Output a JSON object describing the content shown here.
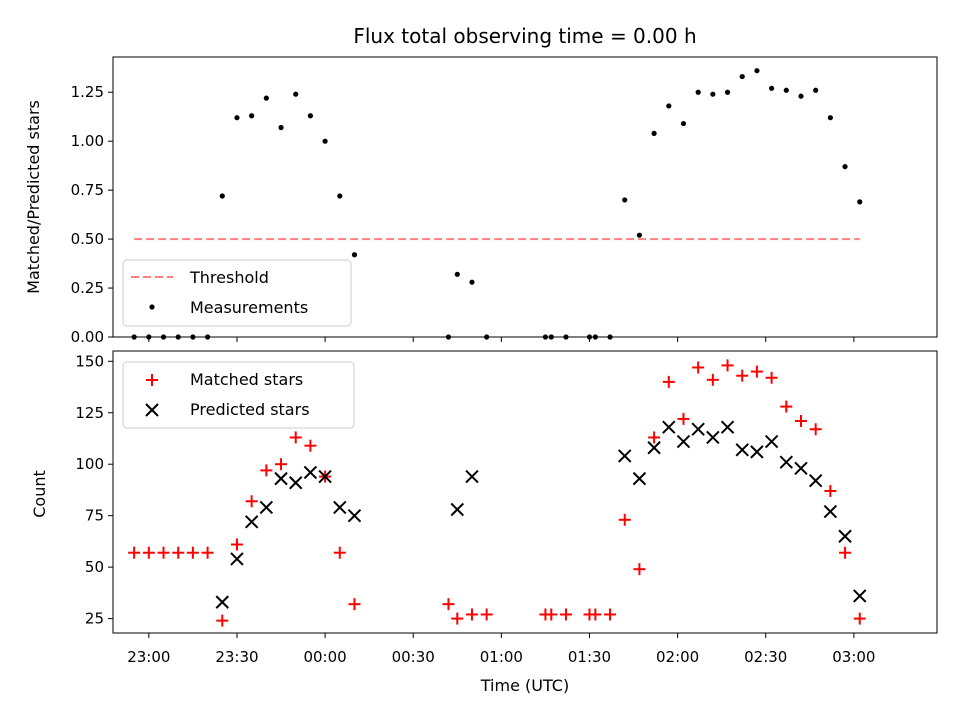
{
  "chart_data": [
    {
      "type": "scatter",
      "title": "Flux total observing time = 0.00 h",
      "ylabel": "Matched/Predicted stars",
      "xlabel": "",
      "ylim": [
        0,
        1.43
      ],
      "yticks": [
        "0.00",
        "0.25",
        "0.50",
        "0.75",
        "1.00",
        "1.25"
      ],
      "legend_placement": "lower-left",
      "threshold": {
        "name": "Threshold",
        "value": 0.5,
        "x_start": "22:55",
        "x_end": "03:02",
        "color": "#ff7f7f"
      },
      "series": [
        {
          "name": "Measurements",
          "color": "#000000",
          "points": [
            [
              "22:55",
              0.0
            ],
            [
              "23:00",
              0.0
            ],
            [
              "23:05",
              0.0
            ],
            [
              "23:10",
              0.0
            ],
            [
              "23:15",
              0.0
            ],
            [
              "23:20",
              0.0
            ],
            [
              "23:25",
              0.72
            ],
            [
              "23:30",
              1.12
            ],
            [
              "23:35",
              1.13
            ],
            [
              "23:40",
              1.22
            ],
            [
              "23:45",
              1.07
            ],
            [
              "23:50",
              1.24
            ],
            [
              "23:55",
              1.13
            ],
            [
              "00:00",
              1.0
            ],
            [
              "00:05",
              0.72
            ],
            [
              "00:10",
              0.42
            ],
            [
              "00:42",
              0.0
            ],
            [
              "00:45",
              0.32
            ],
            [
              "00:50",
              0.28
            ],
            [
              "00:55",
              0.0
            ],
            [
              "01:15",
              0.0
            ],
            [
              "01:17",
              0.0
            ],
            [
              "01:22",
              0.0
            ],
            [
              "01:30",
              0.0
            ],
            [
              "01:32",
              0.0
            ],
            [
              "01:37",
              0.0
            ],
            [
              "01:42",
              0.7
            ],
            [
              "01:47",
              0.52
            ],
            [
              "01:52",
              1.04
            ],
            [
              "01:57",
              1.18
            ],
            [
              "02:02",
              1.09
            ],
            [
              "02:07",
              1.25
            ],
            [
              "02:12",
              1.24
            ],
            [
              "02:17",
              1.25
            ],
            [
              "02:22",
              1.33
            ],
            [
              "02:27",
              1.36
            ],
            [
              "02:32",
              1.27
            ],
            [
              "02:37",
              1.26
            ],
            [
              "02:42",
              1.23
            ],
            [
              "02:47",
              1.26
            ],
            [
              "02:52",
              1.12
            ],
            [
              "02:57",
              0.87
            ],
            [
              "03:02",
              0.69
            ]
          ]
        }
      ]
    },
    {
      "type": "scatter",
      "title": "",
      "xlabel": "Time (UTC)",
      "ylabel": "Count",
      "ylim": [
        18,
        155
      ],
      "yticks": [
        "25",
        "50",
        "75",
        "100",
        "125",
        "150"
      ],
      "xticks": [
        "23:00",
        "23:30",
        "00:00",
        "00:30",
        "01:00",
        "01:30",
        "02:00",
        "02:30",
        "03:00"
      ],
      "legend_placement": "upper-left",
      "series": [
        {
          "name": "Matched stars",
          "marker": "+",
          "color": "#ff0000",
          "points": [
            [
              "22:55",
              57
            ],
            [
              "23:00",
              57
            ],
            [
              "23:05",
              57
            ],
            [
              "23:10",
              57
            ],
            [
              "23:15",
              57
            ],
            [
              "23:20",
              57
            ],
            [
              "23:25",
              24
            ],
            [
              "23:30",
              61
            ],
            [
              "23:35",
              82
            ],
            [
              "23:40",
              97
            ],
            [
              "23:45",
              100
            ],
            [
              "23:50",
              113
            ],
            [
              "23:55",
              109
            ],
            [
              "00:00",
              94
            ],
            [
              "00:05",
              57
            ],
            [
              "00:10",
              32
            ],
            [
              "00:42",
              32
            ],
            [
              "00:45",
              25
            ],
            [
              "00:50",
              27
            ],
            [
              "00:55",
              27
            ],
            [
              "01:15",
              27
            ],
            [
              "01:17",
              27
            ],
            [
              "01:22",
              27
            ],
            [
              "01:30",
              27
            ],
            [
              "01:32",
              27
            ],
            [
              "01:37",
              27
            ],
            [
              "01:42",
              73
            ],
            [
              "01:47",
              49
            ],
            [
              "01:52",
              113
            ],
            [
              "01:57",
              140
            ],
            [
              "02:02",
              122
            ],
            [
              "02:07",
              147
            ],
            [
              "02:12",
              141
            ],
            [
              "02:17",
              148
            ],
            [
              "02:22",
              143
            ],
            [
              "02:27",
              145
            ],
            [
              "02:32",
              142
            ],
            [
              "02:37",
              128
            ],
            [
              "02:42",
              121
            ],
            [
              "02:47",
              117
            ],
            [
              "02:52",
              87
            ],
            [
              "02:57",
              57
            ],
            [
              "03:02",
              25
            ]
          ]
        },
        {
          "name": "Predicted stars",
          "marker": "x",
          "color": "#000000",
          "points": [
            [
              "23:25",
              33
            ],
            [
              "23:30",
              54
            ],
            [
              "23:35",
              72
            ],
            [
              "23:40",
              79
            ],
            [
              "23:45",
              93
            ],
            [
              "23:50",
              91
            ],
            [
              "23:55",
              96
            ],
            [
              "00:00",
              94
            ],
            [
              "00:05",
              79
            ],
            [
              "00:10",
              75
            ],
            [
              "00:45",
              78
            ],
            [
              "00:50",
              94
            ],
            [
              "01:42",
              104
            ],
            [
              "01:47",
              93
            ],
            [
              "01:52",
              108
            ],
            [
              "01:57",
              118
            ],
            [
              "02:02",
              111
            ],
            [
              "02:07",
              117
            ],
            [
              "02:12",
              113
            ],
            [
              "02:17",
              118
            ],
            [
              "02:22",
              107
            ],
            [
              "02:27",
              106
            ],
            [
              "02:32",
              111
            ],
            [
              "02:37",
              101
            ],
            [
              "02:42",
              98
            ],
            [
              "02:47",
              92
            ],
            [
              "02:52",
              77
            ],
            [
              "02:57",
              65
            ],
            [
              "03:02",
              36
            ]
          ]
        }
      ]
    }
  ]
}
